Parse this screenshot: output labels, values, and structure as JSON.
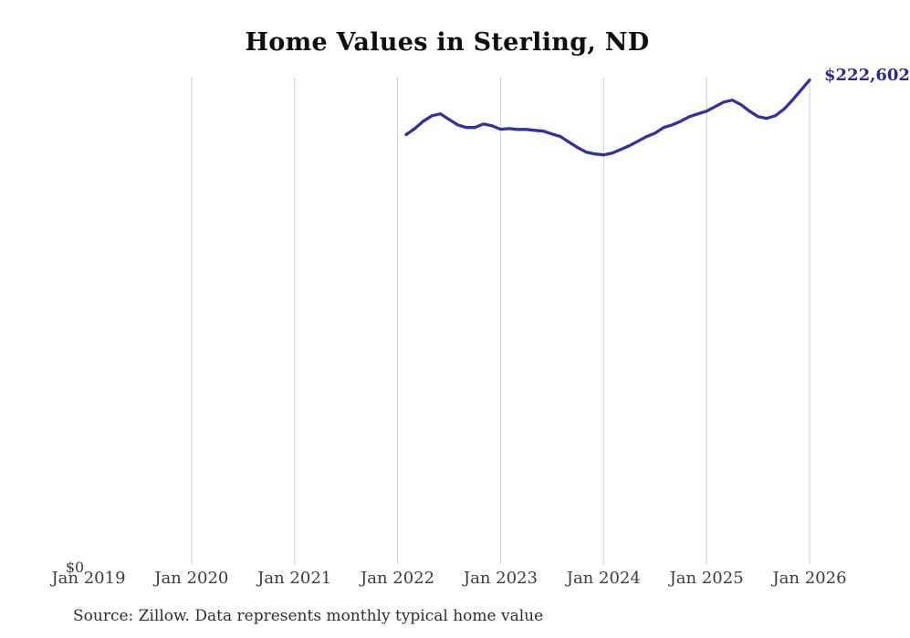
{
  "chart_data": {
    "type": "line",
    "title": "Home Values in Sterling, ND",
    "series_name": "Monthly typical home value",
    "x": [
      "2022-02",
      "2022-03",
      "2022-04",
      "2022-05",
      "2022-06",
      "2022-07",
      "2022-08",
      "2022-09",
      "2022-10",
      "2022-11",
      "2022-12",
      "2023-01",
      "2023-02",
      "2023-03",
      "2023-04",
      "2023-05",
      "2023-06",
      "2023-07",
      "2023-08",
      "2023-09",
      "2023-10",
      "2023-11",
      "2023-12",
      "2024-01",
      "2024-02",
      "2024-03",
      "2024-04",
      "2024-05",
      "2024-06",
      "2024-07",
      "2024-08",
      "2024-09",
      "2024-10",
      "2024-11",
      "2024-12",
      "2025-01",
      "2025-02",
      "2025-03",
      "2025-04",
      "2025-05",
      "2025-06",
      "2025-07",
      "2025-08",
      "2025-09",
      "2025-10",
      "2025-11",
      "2025-12",
      "2026-01"
    ],
    "values": [
      197500,
      200300,
      203700,
      206200,
      207100,
      204500,
      202000,
      200800,
      200800,
      202400,
      201600,
      200000,
      200300,
      199900,
      199900,
      199500,
      199100,
      197800,
      196600,
      194000,
      191500,
      189400,
      188600,
      188200,
      189000,
      190700,
      192400,
      194500,
      196600,
      198200,
      200800,
      202000,
      203700,
      205800,
      207100,
      208300,
      210400,
      212500,
      213400,
      211300,
      208300,
      205800,
      205000,
      206200,
      209200,
      213400,
      218000,
      222602
    ],
    "end_label": "$222,602",
    "x_tick_labels": [
      "Jan 2019",
      "Jan 2020",
      "Jan 2021",
      "Jan 2022",
      "Jan 2023",
      "Jan 2024",
      "Jan 2025",
      "Jan 2026"
    ],
    "y_tick_labels": [
      "$0"
    ],
    "ylim": [
      0,
      224000
    ],
    "grid": "vertical-year-gridlines",
    "legend": "none",
    "line_color": "#32329e",
    "end_label_color": "#29298f",
    "gridline_color": "#cbcbcb",
    "source": "Source: Zillow. Data represents monthly typical home value"
  }
}
